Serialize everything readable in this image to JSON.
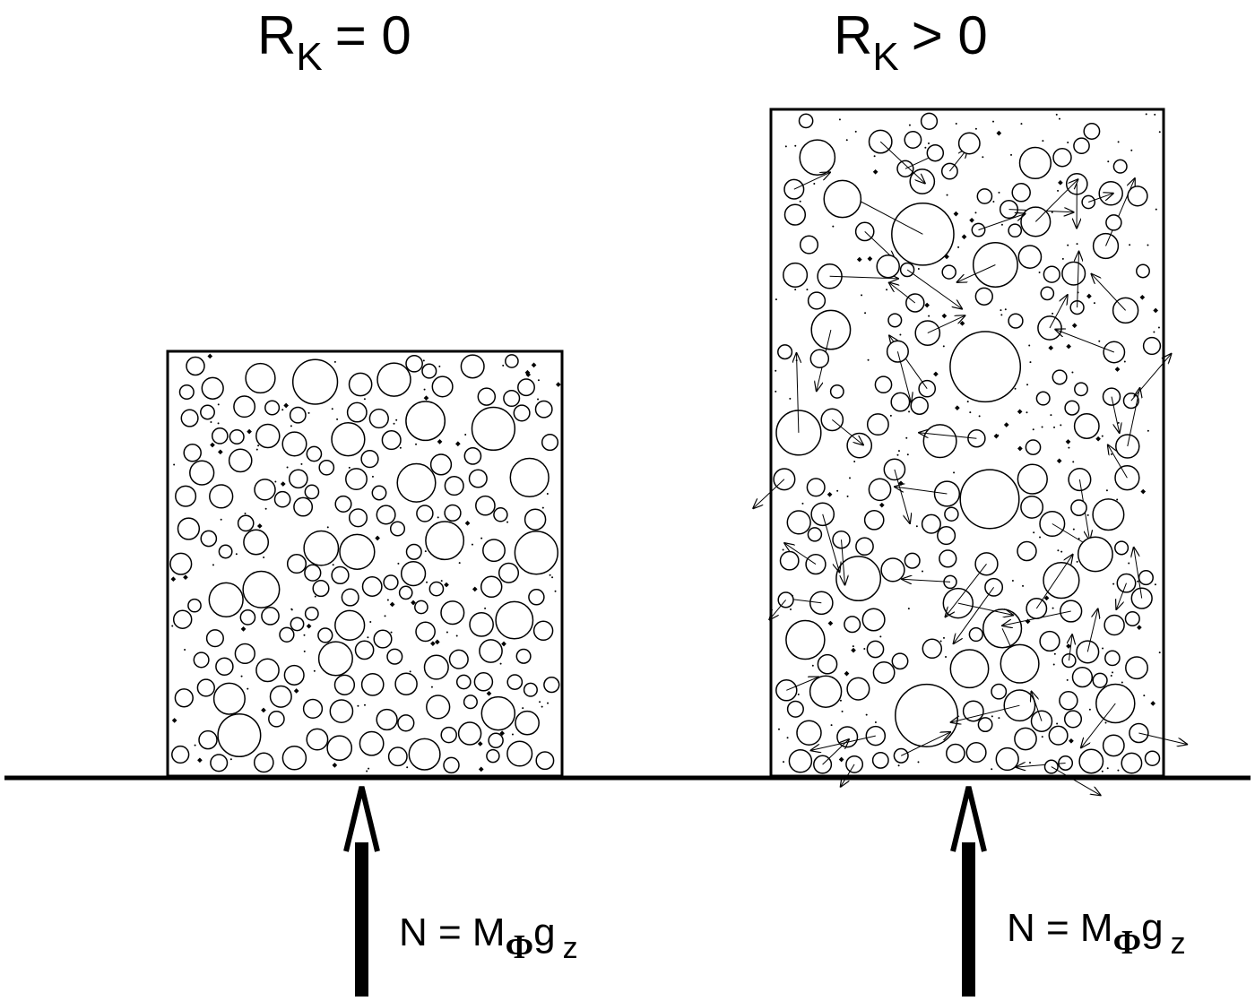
{
  "panels": [
    {
      "title": {
        "symbol": "R",
        "subscript": "K",
        "relation": "= 0"
      },
      "force": {
        "lhs": "N = M",
        "mass_subscript": "Φ",
        "g": "g",
        "g_subscript": "z"
      }
    },
    {
      "title": {
        "symbol": "R",
        "subscript": "K",
        "relation": "> 0"
      },
      "force": {
        "lhs": "N = M",
        "mass_subscript": "Φ",
        "g": "g",
        "g_subscript": "z"
      }
    }
  ]
}
